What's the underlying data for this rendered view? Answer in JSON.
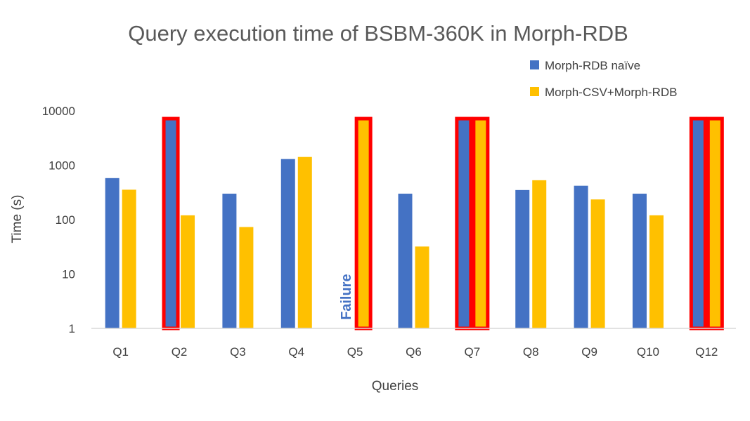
{
  "chart_data": {
    "type": "bar",
    "title": "Query execution time of BSBM-360K in Morph-RDB",
    "xlabel": "Queries",
    "ylabel": "Time (s)",
    "yscale": "log",
    "ylim": [
      1,
      10000
    ],
    "yticks": [
      "1",
      "10",
      "100",
      "1000",
      "10000"
    ],
    "categories": [
      "Q1",
      "Q2",
      "Q3",
      "Q4",
      "Q5",
      "Q6",
      "Q7",
      "Q8",
      "Q9",
      "Q10",
      "Q12"
    ],
    "series": [
      {
        "name": "Morph-RDB naïve",
        "color": "#4472C4",
        "values": [
          580,
          7200,
          300,
          1300,
          null,
          300,
          7200,
          350,
          420,
          300,
          7200
        ],
        "highlighted": [
          false,
          true,
          false,
          false,
          false,
          false,
          true,
          false,
          false,
          false,
          true
        ]
      },
      {
        "name": "Morph-CSV+Morph-RDB",
        "color": "#FFC000",
        "values": [
          355,
          120,
          73,
          1420,
          7200,
          32,
          7200,
          530,
          235,
          120,
          7200
        ],
        "highlighted": [
          false,
          false,
          false,
          false,
          true,
          false,
          true,
          false,
          false,
          false,
          true
        ]
      }
    ],
    "highlight_color": "#FF0000",
    "annotations": [
      {
        "category": "Q5",
        "series": "Morph-RDB naïve",
        "text": "Failure",
        "color": "#4472C4"
      }
    ],
    "legend_position": "top-right",
    "grid": false
  }
}
